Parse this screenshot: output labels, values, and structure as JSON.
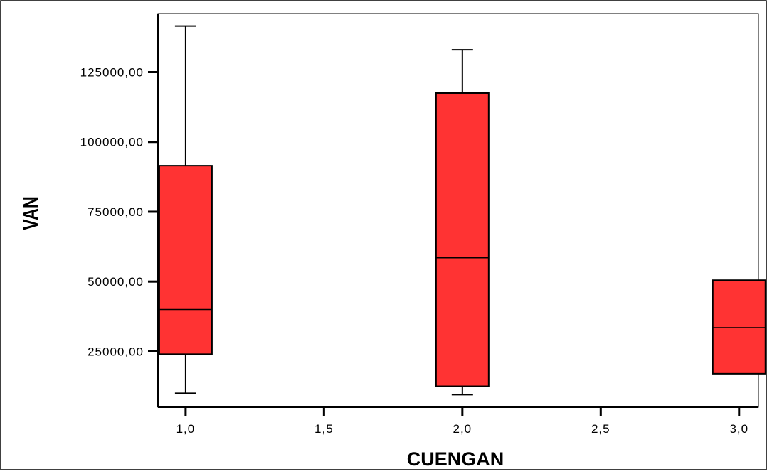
{
  "chart_data": {
    "type": "boxplot",
    "title": "",
    "xlabel": "CUENGAN",
    "ylabel": "VAN",
    "xlim": [
      0.9,
      3.07
    ],
    "ylim": [
      5000,
      146000
    ],
    "xticks": [
      1.0,
      1.5,
      2.0,
      2.5,
      3.0
    ],
    "xtick_labels": [
      "1,0",
      "1,5",
      "2,0",
      "2,5",
      "3,0"
    ],
    "yticks": [
      25000,
      50000,
      75000,
      100000,
      125000
    ],
    "ytick_labels": [
      "25000,00",
      "50000,00",
      "75000,00",
      "100000,00",
      "125000,00"
    ],
    "grid": false,
    "colors": {
      "box_fill": "#ff3333",
      "box_stroke": "#000000",
      "plot_background": "#ffffff",
      "plot_border": "#000000"
    },
    "boxes": [
      {
        "x": 1.0,
        "min": 10000,
        "q1": 24000,
        "median": 40000,
        "q3": 91500,
        "max": 141500
      },
      {
        "x": 2.0,
        "min": 9500,
        "q1": 12500,
        "median": 58500,
        "q3": 117500,
        "max": 133000
      },
      {
        "x": 3.0,
        "min": 17000,
        "q1": 17000,
        "median": 33500,
        "q3": 50500,
        "max": 50500
      }
    ]
  }
}
